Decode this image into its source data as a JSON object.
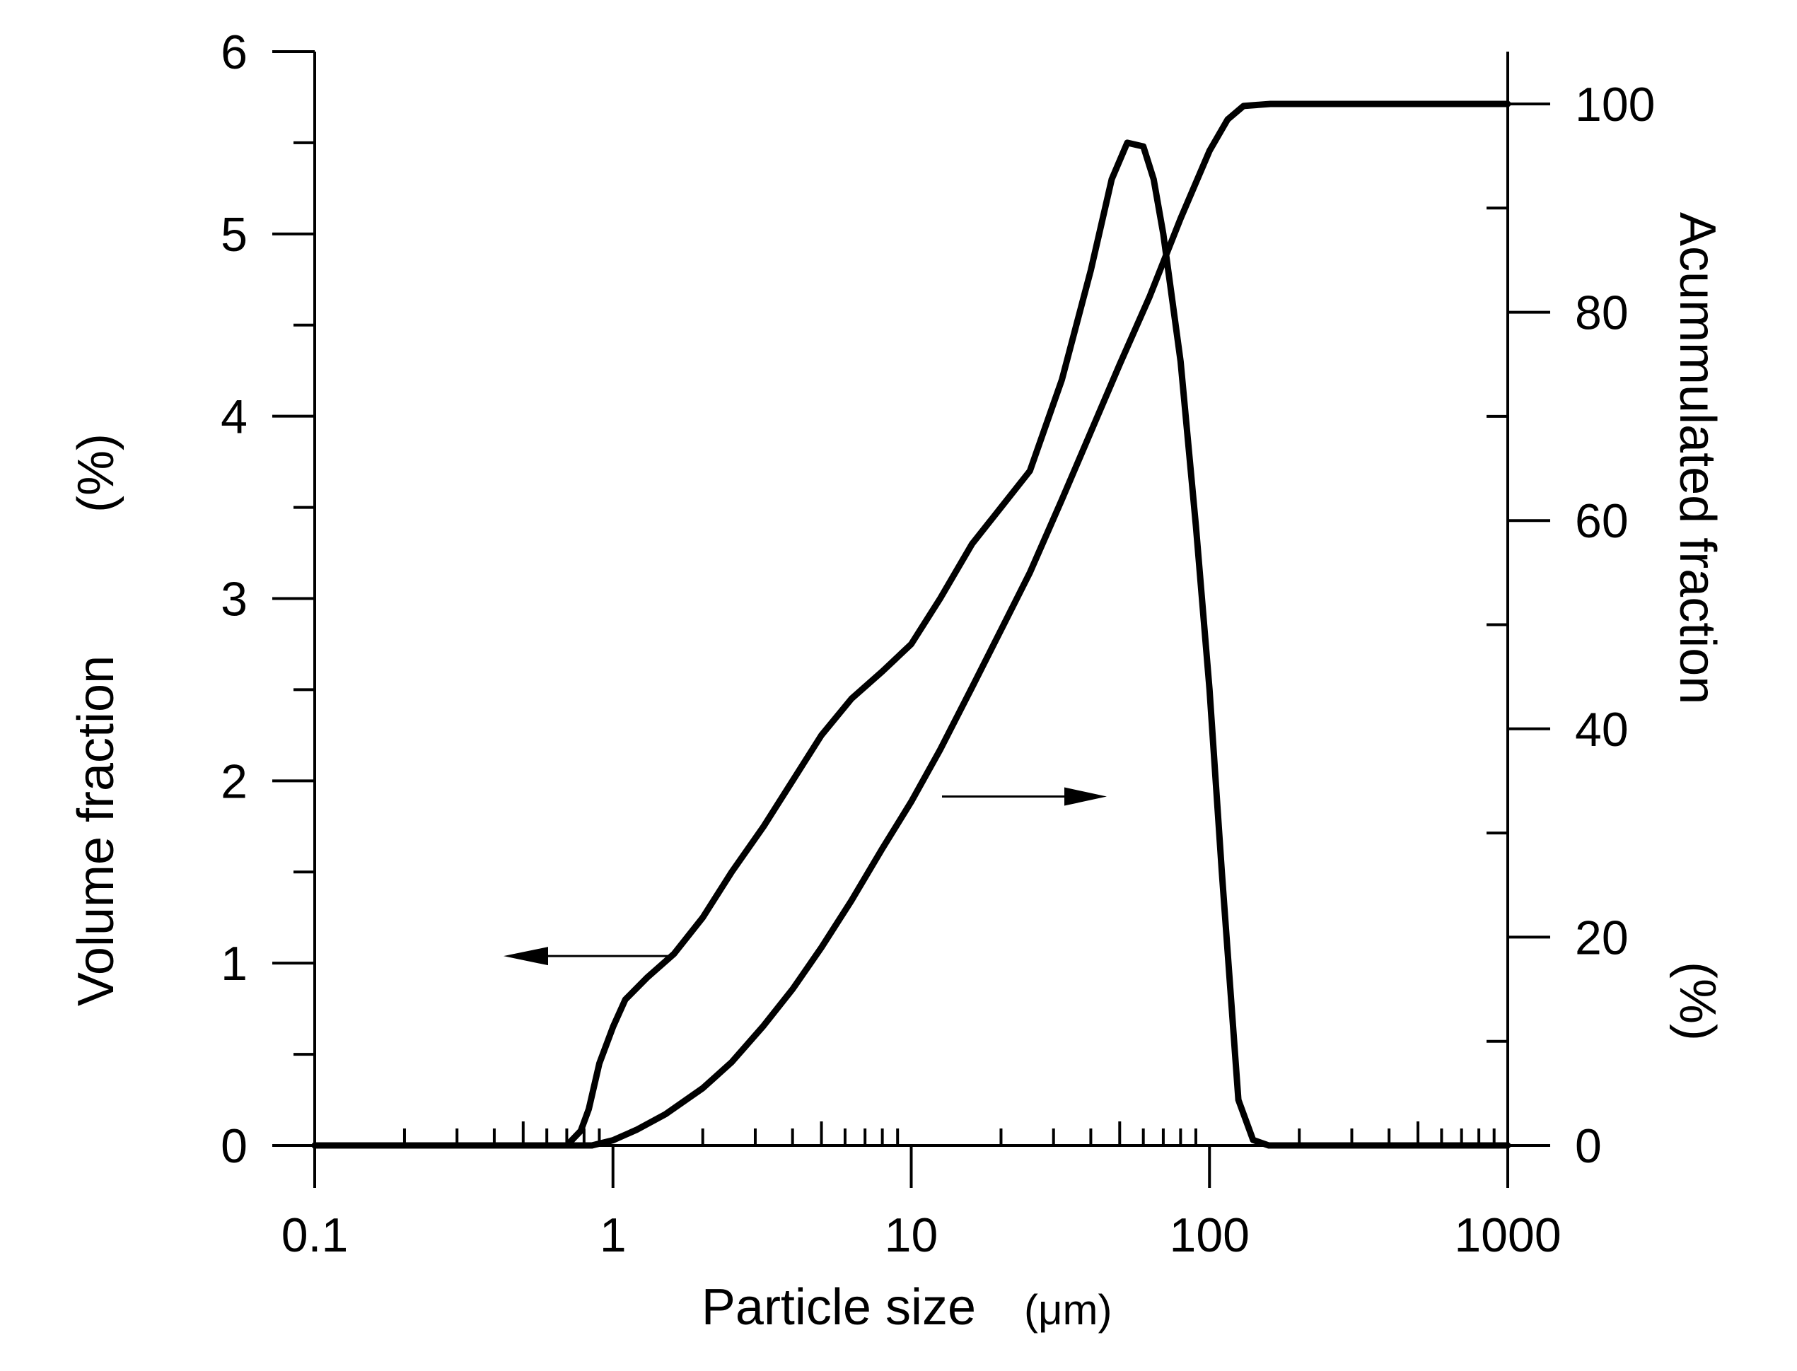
{
  "chart_data": {
    "type": "line",
    "title": "",
    "xlabel": "Particle size",
    "xlabel_unit": "(μm)",
    "ylabel_left": "Volume fraction",
    "ylabel_left_unit": "(%)",
    "ylabel_right": "Acummulated fraction",
    "ylabel_right_unit": "(%)",
    "xscale": "log",
    "xlim": [
      0.1,
      1000
    ],
    "ylim_left": [
      0,
      6
    ],
    "ylim_right": [
      0,
      105
    ],
    "x_ticks": [
      "0.1",
      "1",
      "10",
      "100",
      "1000"
    ],
    "y_left_ticks": [
      "0",
      "1",
      "2",
      "3",
      "4",
      "5",
      "6"
    ],
    "y_right_ticks": [
      "0",
      "20",
      "40",
      "60",
      "80",
      "100"
    ],
    "series": [
      {
        "name": "Volume fraction",
        "axis": "left",
        "x": [
          0.1,
          0.7,
          0.78,
          0.83,
          0.9,
          1.0,
          1.1,
          1.3,
          1.6,
          2.0,
          2.5,
          3.2,
          4.0,
          5.0,
          6.3,
          8.0,
          10,
          12.5,
          16,
          20,
          25,
          32,
          40,
          47,
          53,
          60,
          65,
          70,
          80,
          90,
          100,
          110,
          125,
          140,
          158,
          1000
        ],
        "values": [
          0,
          0,
          0.08,
          0.2,
          0.45,
          0.65,
          0.8,
          0.92,
          1.05,
          1.25,
          1.5,
          1.75,
          2.0,
          2.25,
          2.45,
          2.6,
          2.75,
          3.0,
          3.3,
          3.5,
          3.7,
          4.2,
          4.8,
          5.3,
          5.5,
          5.48,
          5.3,
          5.0,
          4.3,
          3.4,
          2.5,
          1.5,
          0.25,
          0.03,
          0,
          0
        ]
      },
      {
        "name": "Accumulated fraction",
        "axis": "right",
        "x": [
          0.1,
          0.85,
          1.0,
          1.2,
          1.5,
          2.0,
          2.5,
          3.2,
          4.0,
          5.0,
          6.3,
          8.0,
          10,
          12.5,
          16,
          20,
          25,
          32,
          40,
          50,
          63,
          80,
          100,
          115,
          130,
          160,
          200,
          1000
        ],
        "values": [
          0,
          0,
          0.5,
          1.5,
          3,
          5.5,
          8,
          11.5,
          15,
          19,
          23.5,
          28.5,
          33,
          38,
          44,
          49.5,
          55,
          62,
          68.5,
          75,
          81.5,
          89,
          95.5,
          98.5,
          99.8,
          100,
          100,
          100
        ]
      }
    ],
    "annotations": [
      {
        "text": "",
        "arrow": "left",
        "points_to": "Volume fraction"
      },
      {
        "text": "",
        "arrow": "right",
        "points_to": "Acummulated fraction"
      }
    ]
  }
}
